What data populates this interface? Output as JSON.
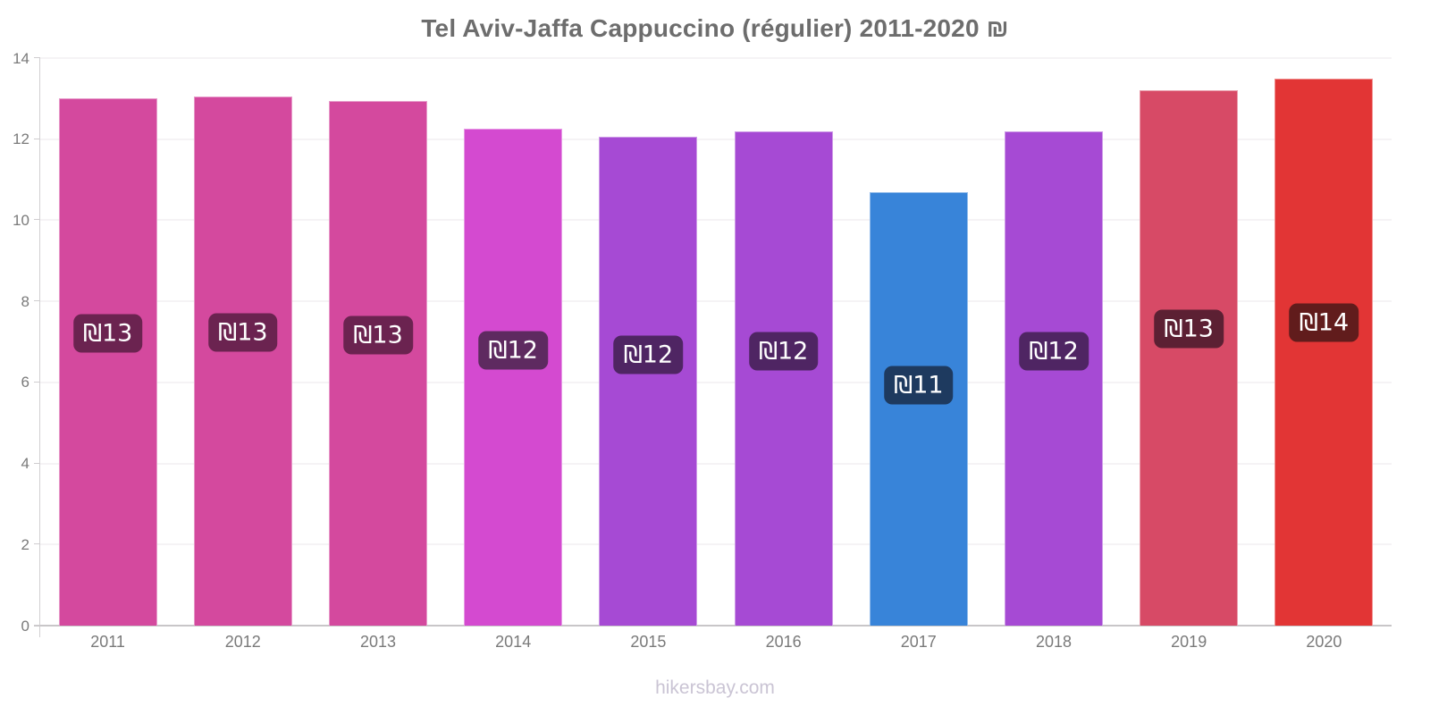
{
  "title": "Tel Aviv-Jaffa Cappuccino (régulier) 2011-2020 ₪",
  "footer": "hikersbay.com",
  "chart_data": {
    "type": "bar",
    "title": "Tel Aviv-Jaffa Cappuccino (régulier) 2011-2020 ₪",
    "xlabel": "",
    "ylabel": "",
    "ylim": [
      0,
      14
    ],
    "yticks": [
      0,
      2,
      4,
      6,
      8,
      10,
      12,
      14
    ],
    "grid": true,
    "legend": "none",
    "categories": [
      "2011",
      "2012",
      "2013",
      "2014",
      "2015",
      "2016",
      "2017",
      "2018",
      "2019",
      "2020"
    ],
    "values": [
      13.0,
      13.05,
      12.95,
      12.25,
      12.05,
      12.2,
      10.7,
      12.2,
      13.2,
      13.5
    ],
    "value_labels": [
      "₪13",
      "₪13",
      "₪13",
      "₪12",
      "₪12",
      "₪12",
      "₪11",
      "₪12",
      "₪13",
      "₪14"
    ],
    "bar_colors": [
      "#d4499e",
      "#d4499e",
      "#d4499e",
      "#d44ad0",
      "#a64ad4",
      "#a64ad4",
      "#3884d9",
      "#a64ad4",
      "#d74a66",
      "#e23535"
    ],
    "label_bg_colors": [
      "#6b2350",
      "#6b2350",
      "#6b2350",
      "#5e2a60",
      "#4f2563",
      "#4f2563",
      "#1e3a5f",
      "#4f2563",
      "#5c2033",
      "#611c1c"
    ]
  }
}
